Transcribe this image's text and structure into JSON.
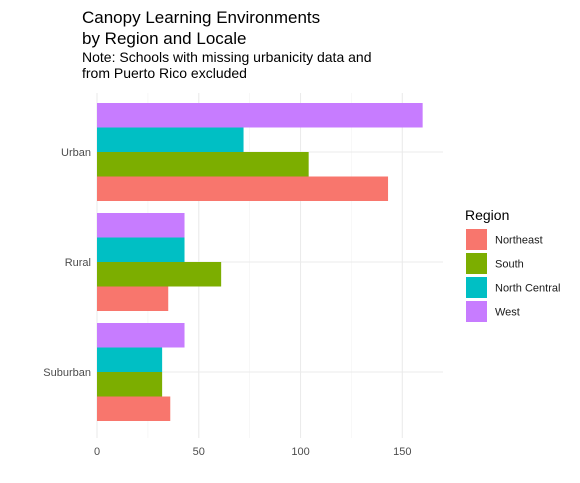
{
  "chart_data": {
    "type": "bar",
    "orientation": "horizontal",
    "title_lines": [
      "Canopy Learning Environments",
      "by Region and Locale"
    ],
    "subtitle_lines": [
      "Note: Schools with missing urbanicity data and",
      "from Puerto Rico excluded"
    ],
    "xlabel": "",
    "ylabel": "",
    "categories": [
      "Urban",
      "Rural",
      "Suburban"
    ],
    "series": [
      {
        "name": "Northeast",
        "color": "#F8766D",
        "values": [
          143,
          35,
          36
        ]
      },
      {
        "name": "South",
        "color": "#7CAE00",
        "values": [
          104,
          61,
          32
        ]
      },
      {
        "name": "North Central",
        "color": "#00BFC4",
        "values": [
          72,
          43,
          32
        ]
      },
      {
        "name": "West",
        "color": "#C77CFF",
        "values": [
          160,
          43,
          43
        ]
      }
    ],
    "xlim": [
      0,
      170
    ],
    "xticks": [
      0,
      50,
      100,
      150
    ],
    "grid": true,
    "legend": {
      "title": "Region",
      "placement": "right"
    }
  }
}
